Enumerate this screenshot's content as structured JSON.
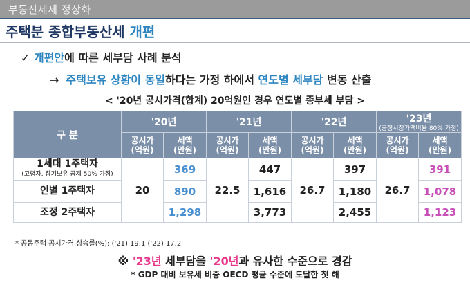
{
  "header": {
    "section": "부동산세제 정상화",
    "title_main": "주택분 종합부동산세 ",
    "title_accent": "개편"
  },
  "bullets": {
    "b1_mark": "✓",
    "b1_blue": "개편안",
    "b1_rest1": "에 따른 ",
    "b1_bold": "세부담 사례 분석",
    "b2_arrow": "→",
    "b2_blue1": "주택보유 상황이 동일",
    "b2_mid": "하다는 가정 하에서 ",
    "b2_blue2": "연도별 세부담",
    "b2_end": " 변동 산출"
  },
  "table": {
    "caption": "< '20년 공시가격(합계) 20억원인 경우 연도별 종부세 부담 >",
    "corner": "구  분",
    "years": [
      "'20년",
      "'21년",
      "'22년",
      "'23년"
    ],
    "year23_note": "(공정시장가액비율 80% 가정)",
    "subheads": [
      "공시가\n(억원)",
      "세액\n(만원)"
    ],
    "rows": [
      {
        "label": "1세대 1주택자",
        "sub": "(고령자, 장기보유 공제 50% 가정)",
        "tax": [
          "369",
          "447",
          "397",
          "391"
        ]
      },
      {
        "label": "인별 1주택자",
        "sub": "",
        "tax": [
          "890",
          "1,616",
          "1,180",
          "1,078"
        ]
      },
      {
        "label": "조정 2주택자",
        "sub": "",
        "tax": [
          "1,298",
          "3,773",
          "2,455",
          "1,123"
        ]
      }
    ],
    "prices": [
      "20",
      "22.5",
      "26.7",
      "26.7"
    ]
  },
  "footnote": "* 공동주택 공시가격 상승률(%): ('21) 19.1 ('22) 17.2",
  "conclusion": {
    "mark": "※ ",
    "p1": "'23년",
    "t1": " 세부담을 ",
    "p2": "'20년",
    "t2": "과 유사한 수준으로 경감",
    "sub": "* GDP 대비 보유세 비중 OECD 평균 수준에 도달한 첫 해"
  },
  "colors": {
    "header_bg": "#7b8fa8",
    "accent_blue": "#2e86c1",
    "magenta": "#c84fb8",
    "pink": "#e8388c"
  }
}
